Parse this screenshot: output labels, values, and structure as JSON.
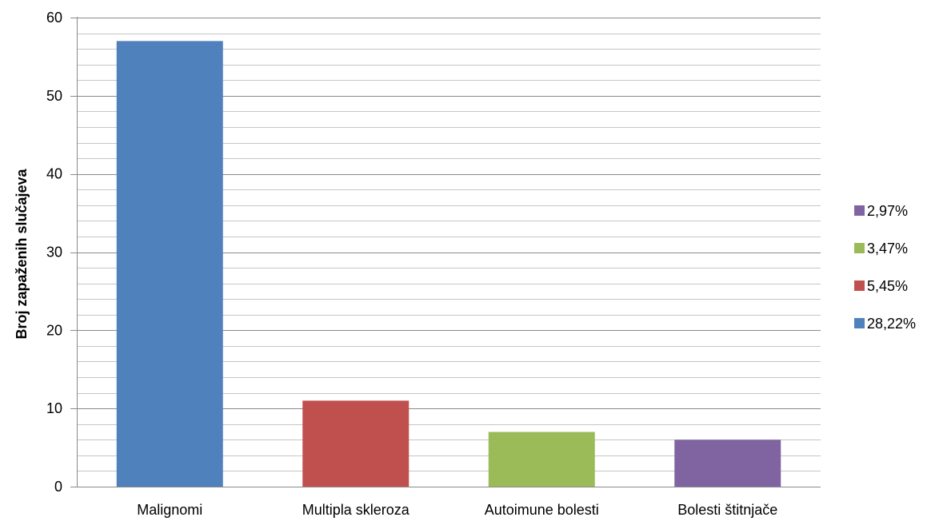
{
  "chart_data": {
    "type": "bar",
    "categories": [
      "Malignomi",
      "Multipla skleroza",
      "Autoimune bolesti",
      "Bolesti štitnjače"
    ],
    "values": [
      57,
      11,
      7,
      6
    ],
    "colors": [
      "#4F81BD",
      "#C0504D",
      "#9BBB59",
      "#8064A2"
    ],
    "ylabel": "Broj zapaženih slučajeva",
    "xlabel": "",
    "ylim": [
      0,
      60
    ],
    "major_ticks": [
      0,
      10,
      20,
      30,
      40,
      50,
      60
    ],
    "minor_gridlines_per_major": 5,
    "grid": true,
    "legend_position": "right",
    "legend": [
      {
        "label": "2,97%",
        "color": "#8064A2"
      },
      {
        "label": "3,47%",
        "color": "#9BBB59"
      },
      {
        "label": "5,45%",
        "color": "#C0504D"
      },
      {
        "label": "28,22%",
        "color": "#4F81BD"
      }
    ]
  }
}
